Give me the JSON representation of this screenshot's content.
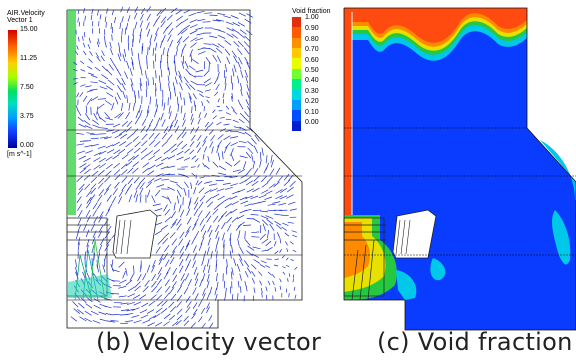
{
  "velocity_legend": {
    "title": "AIR.Velocity",
    "subtitle": "Vector 1",
    "ticks": [
      "15.00",
      "11.25",
      "7.50",
      "3.75",
      "0.00"
    ],
    "unit": "[m s^-1]"
  },
  "void_legend": {
    "title": "Void fraction",
    "ticks": [
      "1.00",
      "0.90",
      "0.80",
      "0.70",
      "0.60",
      "0.50",
      "0.40",
      "0.30",
      "0.20",
      "0.10",
      "0.00"
    ]
  },
  "captions": {
    "velocity": "(b)  Velocity vector",
    "void": "(c)  Void fraction"
  },
  "colors": {
    "vector_blue": "#1a2fd0",
    "fill_blue": "#0a3cff",
    "fill_red": "#ff4a10",
    "fill_orange": "#ff8a00",
    "fill_yellow": "#e8e000",
    "fill_green": "#25c840",
    "fill_cyan": "#00c8e8"
  }
}
